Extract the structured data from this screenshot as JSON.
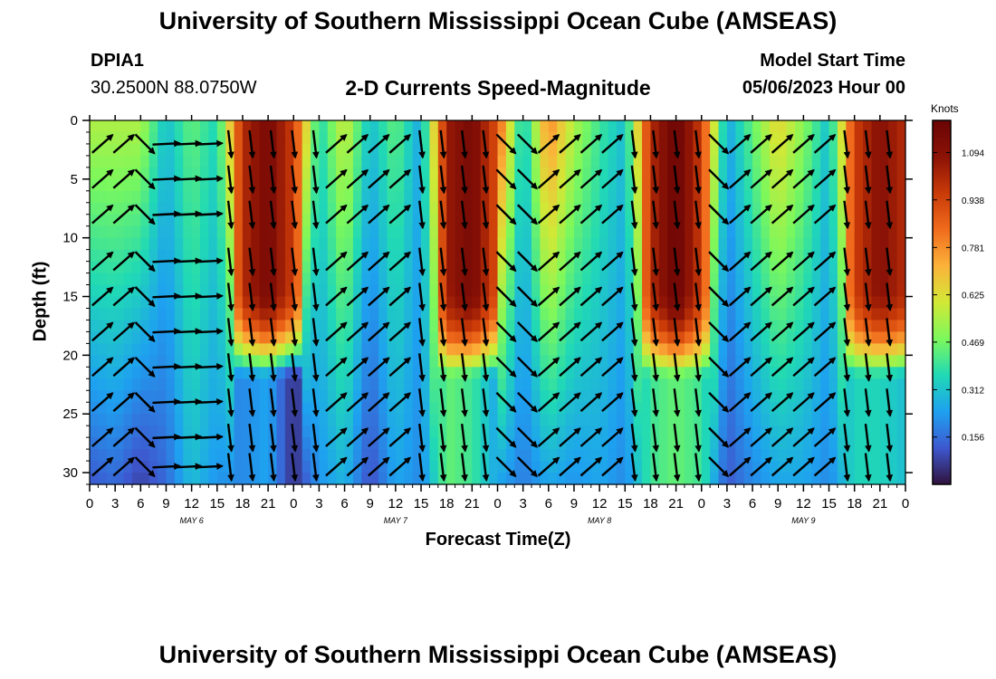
{
  "header": {
    "title": "University of Southern Mississippi Ocean Cube (AMSEAS)",
    "station_id": "DPIA1",
    "station_location": "30.2500N  88.0750W",
    "subtitle": "2-D Currents Speed-Magnitude",
    "run_label": "Model Start Time",
    "run_time": "05/06/2023 Hour 00"
  },
  "footer": {
    "title": "University of Southern Mississippi Ocean Cube (AMSEAS)"
  },
  "chart_data": {
    "type": "heatmap",
    "title": "2-D Currents Speed-Magnitude",
    "xlabel": "Forecast Time(Z)",
    "ylabel": "Depth (ft)",
    "x_tick_labels": [
      "0",
      "3",
      "6",
      "9",
      "12",
      "15",
      "18",
      "21",
      "0",
      "3",
      "6",
      "9",
      "12",
      "15",
      "18",
      "21",
      "0",
      "3",
      "6",
      "9",
      "12",
      "15",
      "18",
      "21",
      "0",
      "3",
      "6",
      "9",
      "12",
      "15",
      "18",
      "21",
      "0"
    ],
    "x_range_hours": [
      0,
      96
    ],
    "day_labels": [
      {
        "label": "MAY 6",
        "hour": 12
      },
      {
        "label": "MAY 7",
        "hour": 36
      },
      {
        "label": "MAY 8",
        "hour": 60
      },
      {
        "label": "MAY 9",
        "hour": 84
      }
    ],
    "y_tick_labels": [
      "0",
      "5",
      "10",
      "15",
      "20",
      "25",
      "30"
    ],
    "ylim": [
      0,
      31
    ],
    "colorbar": {
      "unit": "Knots",
      "tick_labels": [
        "1.094",
        "0.938",
        "0.781",
        "0.625",
        "0.469",
        "0.312",
        "0.156"
      ],
      "range": [
        0.0,
        1.2
      ],
      "colors": [
        "#30123b",
        "#3e58d0",
        "#1ea1f0",
        "#20d9b5",
        "#7cf85c",
        "#d2e836",
        "#fbb33a",
        "#f06b1c",
        "#c93a08",
        "#8b1206",
        "#6a0405"
      ]
    },
    "speed_by_hour": [
      {
        "h": 0,
        "surface": 0.55,
        "bottom": 0.12
      },
      {
        "h": 3,
        "surface": 0.55,
        "bottom": 0.15
      },
      {
        "h": 6,
        "surface": 0.55,
        "bottom": 0.08
      },
      {
        "h": 9,
        "surface": 0.3,
        "bottom": 0.15
      },
      {
        "h": 12,
        "surface": 0.45,
        "bottom": 0.3
      },
      {
        "h": 15,
        "surface": 0.35,
        "bottom": 0.22
      },
      {
        "h": 18,
        "surface": 1.0,
        "bottom": 0.2
      },
      {
        "h": 21,
        "surface": 1.15,
        "bottom": 0.25
      },
      {
        "h": 24,
        "surface": 0.95,
        "bottom": 0.05
      },
      {
        "h": 27,
        "surface": 0.35,
        "bottom": 0.22
      },
      {
        "h": 30,
        "surface": 0.6,
        "bottom": 0.28
      },
      {
        "h": 33,
        "surface": 0.3,
        "bottom": 0.1
      },
      {
        "h": 36,
        "surface": 0.45,
        "bottom": 0.25
      },
      {
        "h": 39,
        "surface": 0.25,
        "bottom": 0.2
      },
      {
        "h": 42,
        "surface": 1.05,
        "bottom": 0.45
      },
      {
        "h": 45,
        "surface": 1.15,
        "bottom": 0.4
      },
      {
        "h": 48,
        "surface": 0.9,
        "bottom": 0.25
      },
      {
        "h": 51,
        "surface": 0.3,
        "bottom": 0.18
      },
      {
        "h": 54,
        "surface": 0.8,
        "bottom": 0.25
      },
      {
        "h": 57,
        "surface": 0.55,
        "bottom": 0.22
      },
      {
        "h": 60,
        "surface": 0.4,
        "bottom": 0.25
      },
      {
        "h": 63,
        "surface": 0.3,
        "bottom": 0.2
      },
      {
        "h": 66,
        "surface": 1.0,
        "bottom": 0.4
      },
      {
        "h": 69,
        "surface": 1.2,
        "bottom": 0.45
      },
      {
        "h": 72,
        "surface": 0.95,
        "bottom": 0.4
      },
      {
        "h": 75,
        "surface": 0.25,
        "bottom": 0.12
      },
      {
        "h": 78,
        "surface": 0.45,
        "bottom": 0.2
      },
      {
        "h": 81,
        "surface": 0.65,
        "bottom": 0.25
      },
      {
        "h": 84,
        "surface": 0.5,
        "bottom": 0.25
      },
      {
        "h": 87,
        "surface": 0.3,
        "bottom": 0.2
      },
      {
        "h": 90,
        "surface": 0.95,
        "bottom": 0.35
      },
      {
        "h": 93,
        "surface": 1.1,
        "bottom": 0.35
      },
      {
        "h": 96,
        "surface": 1.0,
        "bottom": 0.3
      }
    ],
    "arrow_depths_ft": [
      2,
      5,
      8,
      12,
      15,
      18,
      21,
      24,
      27,
      29.5
    ],
    "arrow_direction_pattern": [
      {
        "h_from": 0,
        "h_to": 6,
        "direction": "north-east"
      },
      {
        "h_from": 6,
        "h_to": 9,
        "direction": "south-east"
      },
      {
        "h_from": 9,
        "h_to": 15,
        "direction": "east"
      },
      {
        "h_from": 15,
        "h_to": 24,
        "direction": "south"
      },
      {
        "h_from": 24,
        "h_to": 27,
        "direction": "south"
      },
      {
        "h_from": 27,
        "h_to": 39,
        "direction": "north-east"
      },
      {
        "h_from": 39,
        "h_to": 48,
        "direction": "south"
      },
      {
        "h_from": 48,
        "h_to": 54,
        "direction": "south-east"
      },
      {
        "h_from": 54,
        "h_to": 63,
        "direction": "north-east"
      },
      {
        "h_from": 63,
        "h_to": 72,
        "direction": "south"
      },
      {
        "h_from": 72,
        "h_to": 75,
        "direction": "south-east"
      },
      {
        "h_from": 75,
        "h_to": 87,
        "direction": "north-east"
      },
      {
        "h_from": 87,
        "h_to": 96,
        "direction": "south"
      }
    ]
  }
}
